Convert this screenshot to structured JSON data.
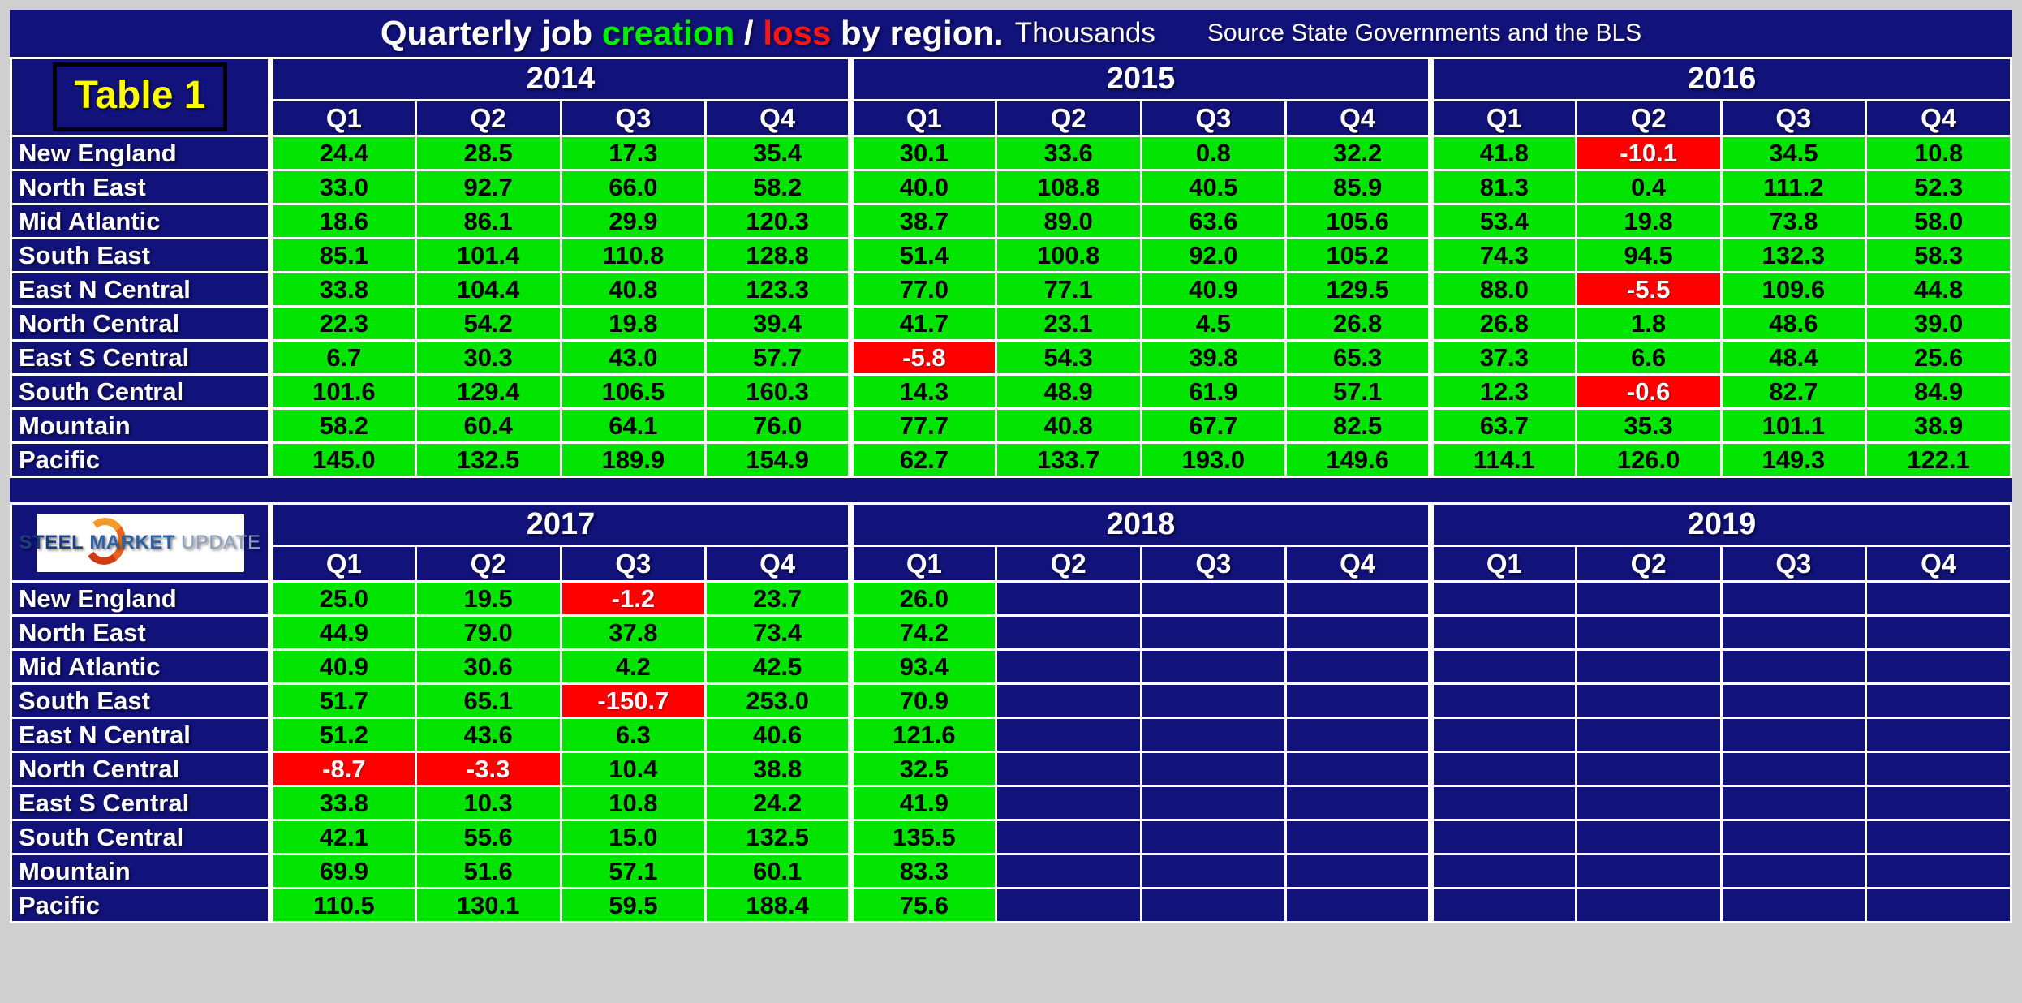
{
  "page": {
    "title_segments": [
      {
        "text": "Quarterly job ",
        "color": "#ffffff"
      },
      {
        "text": "creation",
        "color": "#00ee00"
      },
      {
        "text": " / ",
        "color": "#ffffff"
      },
      {
        "text": "loss",
        "color": "#ff1414"
      },
      {
        "text": " by region.",
        "color": "#ffffff"
      }
    ],
    "unit_label": "Thousands",
    "source_label": "Source State Governments and the BLS",
    "table_badge": "Table 1",
    "logo": {
      "words": [
        {
          "text": "STEEL",
          "color": "#1c3e7e",
          "weight": "bold"
        },
        {
          "text": "MARKET",
          "color": "#2e62a6",
          "weight": "bold"
        },
        {
          "text": "UPDATE",
          "color": "#8ba1bf",
          "weight": "normal"
        }
      ]
    }
  },
  "colors": {
    "navy": "#12127b",
    "green": "#00e400",
    "red": "#ff0000",
    "yellow": "#ffff00",
    "gridline": "#ffffff",
    "frame_gray": "#cfcfcf"
  },
  "chart_data": {
    "type": "table",
    "title": "Quarterly job creation / loss by region.",
    "unit": "Thousands",
    "source": "Source State Governments and the BLS",
    "quarters": [
      "Q1",
      "Q2",
      "Q3",
      "Q4"
    ],
    "regions": [
      "New England",
      "North East",
      "Mid Atlantic",
      "South East",
      "East N Central",
      "North Central",
      "East S Central",
      "South Central",
      "Mountain",
      "Pacific"
    ],
    "tables": [
      {
        "years": [
          "2014",
          "2015",
          "2016"
        ],
        "rows": [
          {
            "region": "New England",
            "values": [
              24.4,
              28.5,
              17.3,
              35.4,
              30.1,
              33.6,
              0.8,
              32.2,
              41.8,
              -10.1,
              34.5,
              10.8
            ]
          },
          {
            "region": "North East",
            "values": [
              33.0,
              92.7,
              66.0,
              58.2,
              40.0,
              108.8,
              40.5,
              85.9,
              81.3,
              0.4,
              111.2,
              52.3
            ]
          },
          {
            "region": "Mid Atlantic",
            "values": [
              18.6,
              86.1,
              29.9,
              120.3,
              38.7,
              89.0,
              63.6,
              105.6,
              53.4,
              19.8,
              73.8,
              58.0
            ]
          },
          {
            "region": "South East",
            "values": [
              85.1,
              101.4,
              110.8,
              128.8,
              51.4,
              100.8,
              92.0,
              105.2,
              74.3,
              94.5,
              132.3,
              58.3
            ]
          },
          {
            "region": "East N Central",
            "values": [
              33.8,
              104.4,
              40.8,
              123.3,
              77.0,
              77.1,
              40.9,
              129.5,
              88.0,
              -5.5,
              109.6,
              44.8
            ]
          },
          {
            "region": "North Central",
            "values": [
              22.3,
              54.2,
              19.8,
              39.4,
              41.7,
              23.1,
              4.5,
              26.8,
              26.8,
              1.8,
              48.6,
              39.0
            ]
          },
          {
            "region": "East S Central",
            "values": [
              6.7,
              30.3,
              43.0,
              57.7,
              -5.8,
              54.3,
              39.8,
              65.3,
              37.3,
              6.6,
              48.4,
              25.6
            ]
          },
          {
            "region": "South Central",
            "values": [
              101.6,
              129.4,
              106.5,
              160.3,
              14.3,
              48.9,
              61.9,
              57.1,
              12.3,
              -0.6,
              82.7,
              84.9
            ]
          },
          {
            "region": "Mountain",
            "values": [
              58.2,
              60.4,
              64.1,
              76.0,
              77.7,
              40.8,
              67.7,
              82.5,
              63.7,
              35.3,
              101.1,
              38.9
            ]
          },
          {
            "region": "Pacific",
            "values": [
              145.0,
              132.5,
              189.9,
              154.9,
              62.7,
              133.7,
              193.0,
              149.6,
              114.1,
              126.0,
              149.3,
              122.1
            ]
          }
        ]
      },
      {
        "years": [
          "2017",
          "2018",
          "2019"
        ],
        "rows": [
          {
            "region": "New England",
            "values": [
              25.0,
              19.5,
              -1.2,
              23.7,
              26.0,
              null,
              null,
              null,
              null,
              null,
              null,
              null
            ]
          },
          {
            "region": "North East",
            "values": [
              44.9,
              79.0,
              37.8,
              73.4,
              74.2,
              null,
              null,
              null,
              null,
              null,
              null,
              null
            ]
          },
          {
            "region": "Mid Atlantic",
            "values": [
              40.9,
              30.6,
              4.2,
              42.5,
              93.4,
              null,
              null,
              null,
              null,
              null,
              null,
              null
            ]
          },
          {
            "region": "South East",
            "values": [
              51.7,
              65.1,
              -150.7,
              253.0,
              70.9,
              null,
              null,
              null,
              null,
              null,
              null,
              null
            ]
          },
          {
            "region": "East N Central",
            "values": [
              51.2,
              43.6,
              6.3,
              40.6,
              121.6,
              null,
              null,
              null,
              null,
              null,
              null,
              null
            ]
          },
          {
            "region": "North Central",
            "values": [
              -8.7,
              -3.3,
              10.4,
              38.8,
              32.5,
              null,
              null,
              null,
              null,
              null,
              null,
              null
            ]
          },
          {
            "region": "East S Central",
            "values": [
              33.8,
              10.3,
              10.8,
              24.2,
              41.9,
              null,
              null,
              null,
              null,
              null,
              null,
              null
            ]
          },
          {
            "region": "South Central",
            "values": [
              42.1,
              55.6,
              15.0,
              132.5,
              135.5,
              null,
              null,
              null,
              null,
              null,
              null,
              null
            ]
          },
          {
            "region": "Mountain",
            "values": [
              69.9,
              51.6,
              57.1,
              60.1,
              83.3,
              null,
              null,
              null,
              null,
              null,
              null,
              null
            ]
          },
          {
            "region": "Pacific",
            "values": [
              110.5,
              130.1,
              59.5,
              188.4,
              75.6,
              null,
              null,
              null,
              null,
              null,
              null,
              null
            ]
          }
        ]
      }
    ]
  }
}
